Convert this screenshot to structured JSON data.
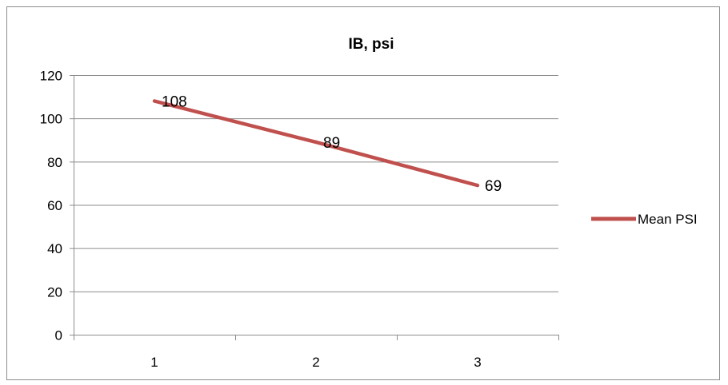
{
  "chart_data": {
    "type": "line",
    "title": "IB, psi",
    "xlabel": "",
    "ylabel": "",
    "categories": [
      "1",
      "2",
      "3"
    ],
    "series": [
      {
        "name": "Mean PSI",
        "values": [
          108,
          89,
          69
        ],
        "color": "#c0504d"
      }
    ],
    "data_labels": [
      "108",
      "89",
      "69"
    ],
    "ylim": [
      0,
      120
    ],
    "yticks": [
      0,
      20,
      40,
      60,
      80,
      100,
      120
    ],
    "ytick_labels": [
      "0",
      "20",
      "40",
      "60",
      "80",
      "100",
      "120"
    ],
    "grid": true,
    "grid_color": "#8c8c8c",
    "legend_position": "right"
  }
}
